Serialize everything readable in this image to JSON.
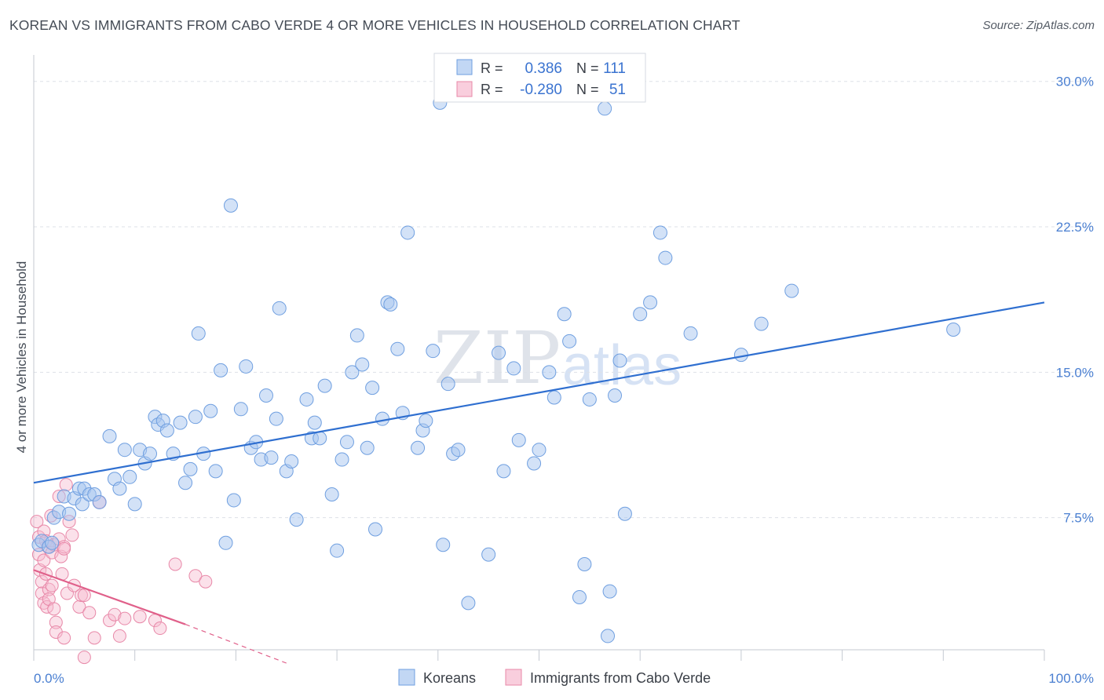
{
  "title": "KOREAN VS IMMIGRANTS FROM CABO VERDE 4 OR MORE VEHICLES IN HOUSEHOLD CORRELATION CHART",
  "source": "Source: ZipAtlas.com",
  "colors": {
    "korean": "#a8c6ef",
    "korean_stroke": "#6f9fe0",
    "korean_line": "#2f6fd0",
    "cabo": "#f6bcd0",
    "cabo_stroke": "#e888a8",
    "cabo_line": "#e0608a",
    "axis_text": "#4a7fd1"
  },
  "legend": {
    "rows": [
      {
        "r_label": "R =",
        "r_value": "0.386",
        "n_label": "N =",
        "n_value": "111"
      },
      {
        "r_label": "R =",
        "r_value": "-0.280",
        "n_label": "N =",
        "n_value": "51"
      }
    ]
  },
  "bottom_legend": {
    "korean": "Koreans",
    "cabo": "Immigrants from Cabo Verde"
  },
  "watermark": {
    "zip": "ZIP",
    "atlas": "atlas"
  },
  "chart_data": {
    "type": "scatter",
    "title": "KOREAN VS IMMIGRANTS FROM CABO VERDE 4 OR MORE VEHICLES IN HOUSEHOLD CORRELATION CHART",
    "xlabel": "",
    "ylabel": "4 or more Vehicles in Household",
    "xlim": [
      0,
      100
    ],
    "ylim": [
      0,
      31
    ],
    "x_tick_labels": [
      "0.0%",
      "100.0%"
    ],
    "y_ticks": [
      7.5,
      15.0,
      22.5,
      30.0
    ],
    "y_tick_labels": [
      "7.5%",
      "15.0%",
      "22.5%",
      "30.0%"
    ],
    "series": [
      {
        "name": "Koreans",
        "r": 0.386,
        "n": 111,
        "trend": {
          "x": [
            0,
            100
          ],
          "y": [
            9.3,
            18.6
          ]
        },
        "points": [
          [
            0.5,
            6.1
          ],
          [
            0.8,
            6.3
          ],
          [
            1.5,
            6.0
          ],
          [
            1.8,
            6.2
          ],
          [
            2.0,
            7.5
          ],
          [
            2.5,
            7.8
          ],
          [
            3.0,
            8.6
          ],
          [
            3.5,
            7.7
          ],
          [
            4.0,
            8.5
          ],
          [
            4.5,
            9.0
          ],
          [
            4.8,
            8.2
          ],
          [
            5.0,
            9.0
          ],
          [
            5.5,
            8.7
          ],
          [
            6.0,
            8.7
          ],
          [
            6.5,
            8.3
          ],
          [
            7.5,
            11.7
          ],
          [
            8.0,
            9.5
          ],
          [
            8.5,
            9.0
          ],
          [
            9.0,
            11.0
          ],
          [
            9.5,
            9.6
          ],
          [
            10.0,
            8.2
          ],
          [
            10.5,
            11.0
          ],
          [
            11.0,
            10.3
          ],
          [
            11.5,
            10.8
          ],
          [
            12.0,
            12.7
          ],
          [
            12.3,
            12.3
          ],
          [
            12.8,
            12.5
          ],
          [
            13.2,
            12.0
          ],
          [
            13.8,
            10.8
          ],
          [
            14.5,
            12.4
          ],
          [
            15.0,
            9.3
          ],
          [
            15.5,
            10.0
          ],
          [
            16.0,
            12.7
          ],
          [
            16.3,
            17.0
          ],
          [
            16.8,
            10.8
          ],
          [
            17.5,
            13.0
          ],
          [
            18.0,
            9.9
          ],
          [
            18.5,
            15.1
          ],
          [
            19.0,
            6.2
          ],
          [
            19.5,
            23.6
          ],
          [
            19.8,
            8.4
          ],
          [
            20.5,
            13.1
          ],
          [
            21.0,
            15.3
          ],
          [
            21.5,
            11.1
          ],
          [
            22.0,
            11.4
          ],
          [
            22.5,
            10.5
          ],
          [
            23.0,
            13.8
          ],
          [
            23.5,
            10.6
          ],
          [
            24.0,
            12.6
          ],
          [
            24.3,
            18.3
          ],
          [
            25.0,
            9.9
          ],
          [
            25.5,
            10.4
          ],
          [
            26.0,
            7.4
          ],
          [
            27.0,
            13.6
          ],
          [
            27.5,
            11.6
          ],
          [
            27.8,
            12.4
          ],
          [
            28.3,
            11.6
          ],
          [
            28.8,
            14.3
          ],
          [
            29.5,
            8.7
          ],
          [
            30.0,
            5.8
          ],
          [
            30.5,
            10.5
          ],
          [
            31.0,
            11.4
          ],
          [
            31.5,
            15.0
          ],
          [
            32.0,
            16.9
          ],
          [
            32.5,
            15.4
          ],
          [
            33.0,
            11.1
          ],
          [
            33.5,
            14.2
          ],
          [
            33.8,
            6.9
          ],
          [
            34.5,
            12.6
          ],
          [
            35.0,
            18.6
          ],
          [
            35.3,
            18.5
          ],
          [
            36.0,
            16.2
          ],
          [
            36.5,
            12.9
          ],
          [
            37.0,
            22.2
          ],
          [
            38.0,
            11.1
          ],
          [
            38.5,
            12.0
          ],
          [
            38.8,
            12.5
          ],
          [
            39.5,
            16.1
          ],
          [
            40.2,
            28.9
          ],
          [
            40.5,
            6.1
          ],
          [
            41.0,
            14.4
          ],
          [
            41.5,
            10.8
          ],
          [
            42.0,
            11.0
          ],
          [
            43.0,
            3.1
          ],
          [
            45.0,
            5.6
          ],
          [
            46.0,
            16.0
          ],
          [
            46.5,
            9.9
          ],
          [
            47.5,
            15.2
          ],
          [
            48.0,
            11.5
          ],
          [
            49.5,
            10.3
          ],
          [
            50.0,
            11.0
          ],
          [
            51.0,
            15.0
          ],
          [
            51.5,
            13.7
          ],
          [
            52.5,
            18.0
          ],
          [
            53.0,
            16.6
          ],
          [
            54.0,
            3.4
          ],
          [
            54.5,
            5.1
          ],
          [
            55.0,
            13.6
          ],
          [
            56.5,
            28.6
          ],
          [
            56.8,
            1.4
          ],
          [
            57.0,
            3.7
          ],
          [
            57.5,
            13.8
          ],
          [
            58.0,
            15.6
          ],
          [
            58.5,
            7.7
          ],
          [
            60.0,
            18.0
          ],
          [
            61.0,
            18.6
          ],
          [
            62.0,
            22.2
          ],
          [
            62.5,
            20.9
          ],
          [
            65.0,
            17.0
          ],
          [
            70.0,
            15.9
          ],
          [
            72.0,
            17.5
          ],
          [
            75.0,
            19.2
          ],
          [
            91.0,
            17.2
          ]
        ]
      },
      {
        "name": "Immigrants from Cabo Verde",
        "r": -0.28,
        "n": 51,
        "trend": {
          "x": [
            0,
            15,
            25
          ],
          "y": [
            4.8,
            2.0,
            0.0
          ]
        },
        "points": [
          [
            0.3,
            7.3
          ],
          [
            0.5,
            6.5
          ],
          [
            0.5,
            5.6
          ],
          [
            0.6,
            4.8
          ],
          [
            0.8,
            4.2
          ],
          [
            0.8,
            3.6
          ],
          [
            1.0,
            6.8
          ],
          [
            1.0,
            5.3
          ],
          [
            1.0,
            3.1
          ],
          [
            1.2,
            6.3
          ],
          [
            1.2,
            4.6
          ],
          [
            1.3,
            2.9
          ],
          [
            1.4,
            6.0
          ],
          [
            1.5,
            3.8
          ],
          [
            1.5,
            3.3
          ],
          [
            1.7,
            7.6
          ],
          [
            1.8,
            5.7
          ],
          [
            1.8,
            4.0
          ],
          [
            2.0,
            6.1
          ],
          [
            2.0,
            2.8
          ],
          [
            2.2,
            2.1
          ],
          [
            2.2,
            1.6
          ],
          [
            2.5,
            8.6
          ],
          [
            2.5,
            6.4
          ],
          [
            2.7,
            5.5
          ],
          [
            2.8,
            4.6
          ],
          [
            3.0,
            6.0
          ],
          [
            3.0,
            5.9
          ],
          [
            3.0,
            1.3
          ],
          [
            3.2,
            9.2
          ],
          [
            3.3,
            3.6
          ],
          [
            3.5,
            7.3
          ],
          [
            3.8,
            6.6
          ],
          [
            4.0,
            4.0
          ],
          [
            4.5,
            2.9
          ],
          [
            4.7,
            3.5
          ],
          [
            5.0,
            3.5
          ],
          [
            5.0,
            0.3
          ],
          [
            5.5,
            2.6
          ],
          [
            6.0,
            1.3
          ],
          [
            6.5,
            8.3
          ],
          [
            7.5,
            2.2
          ],
          [
            8.0,
            2.5
          ],
          [
            8.5,
            1.4
          ],
          [
            9.0,
            2.3
          ],
          [
            10.5,
            2.4
          ],
          [
            12.0,
            2.2
          ],
          [
            12.5,
            1.8
          ],
          [
            14.0,
            5.1
          ],
          [
            16.0,
            4.5
          ],
          [
            17.0,
            4.2
          ]
        ]
      }
    ]
  }
}
